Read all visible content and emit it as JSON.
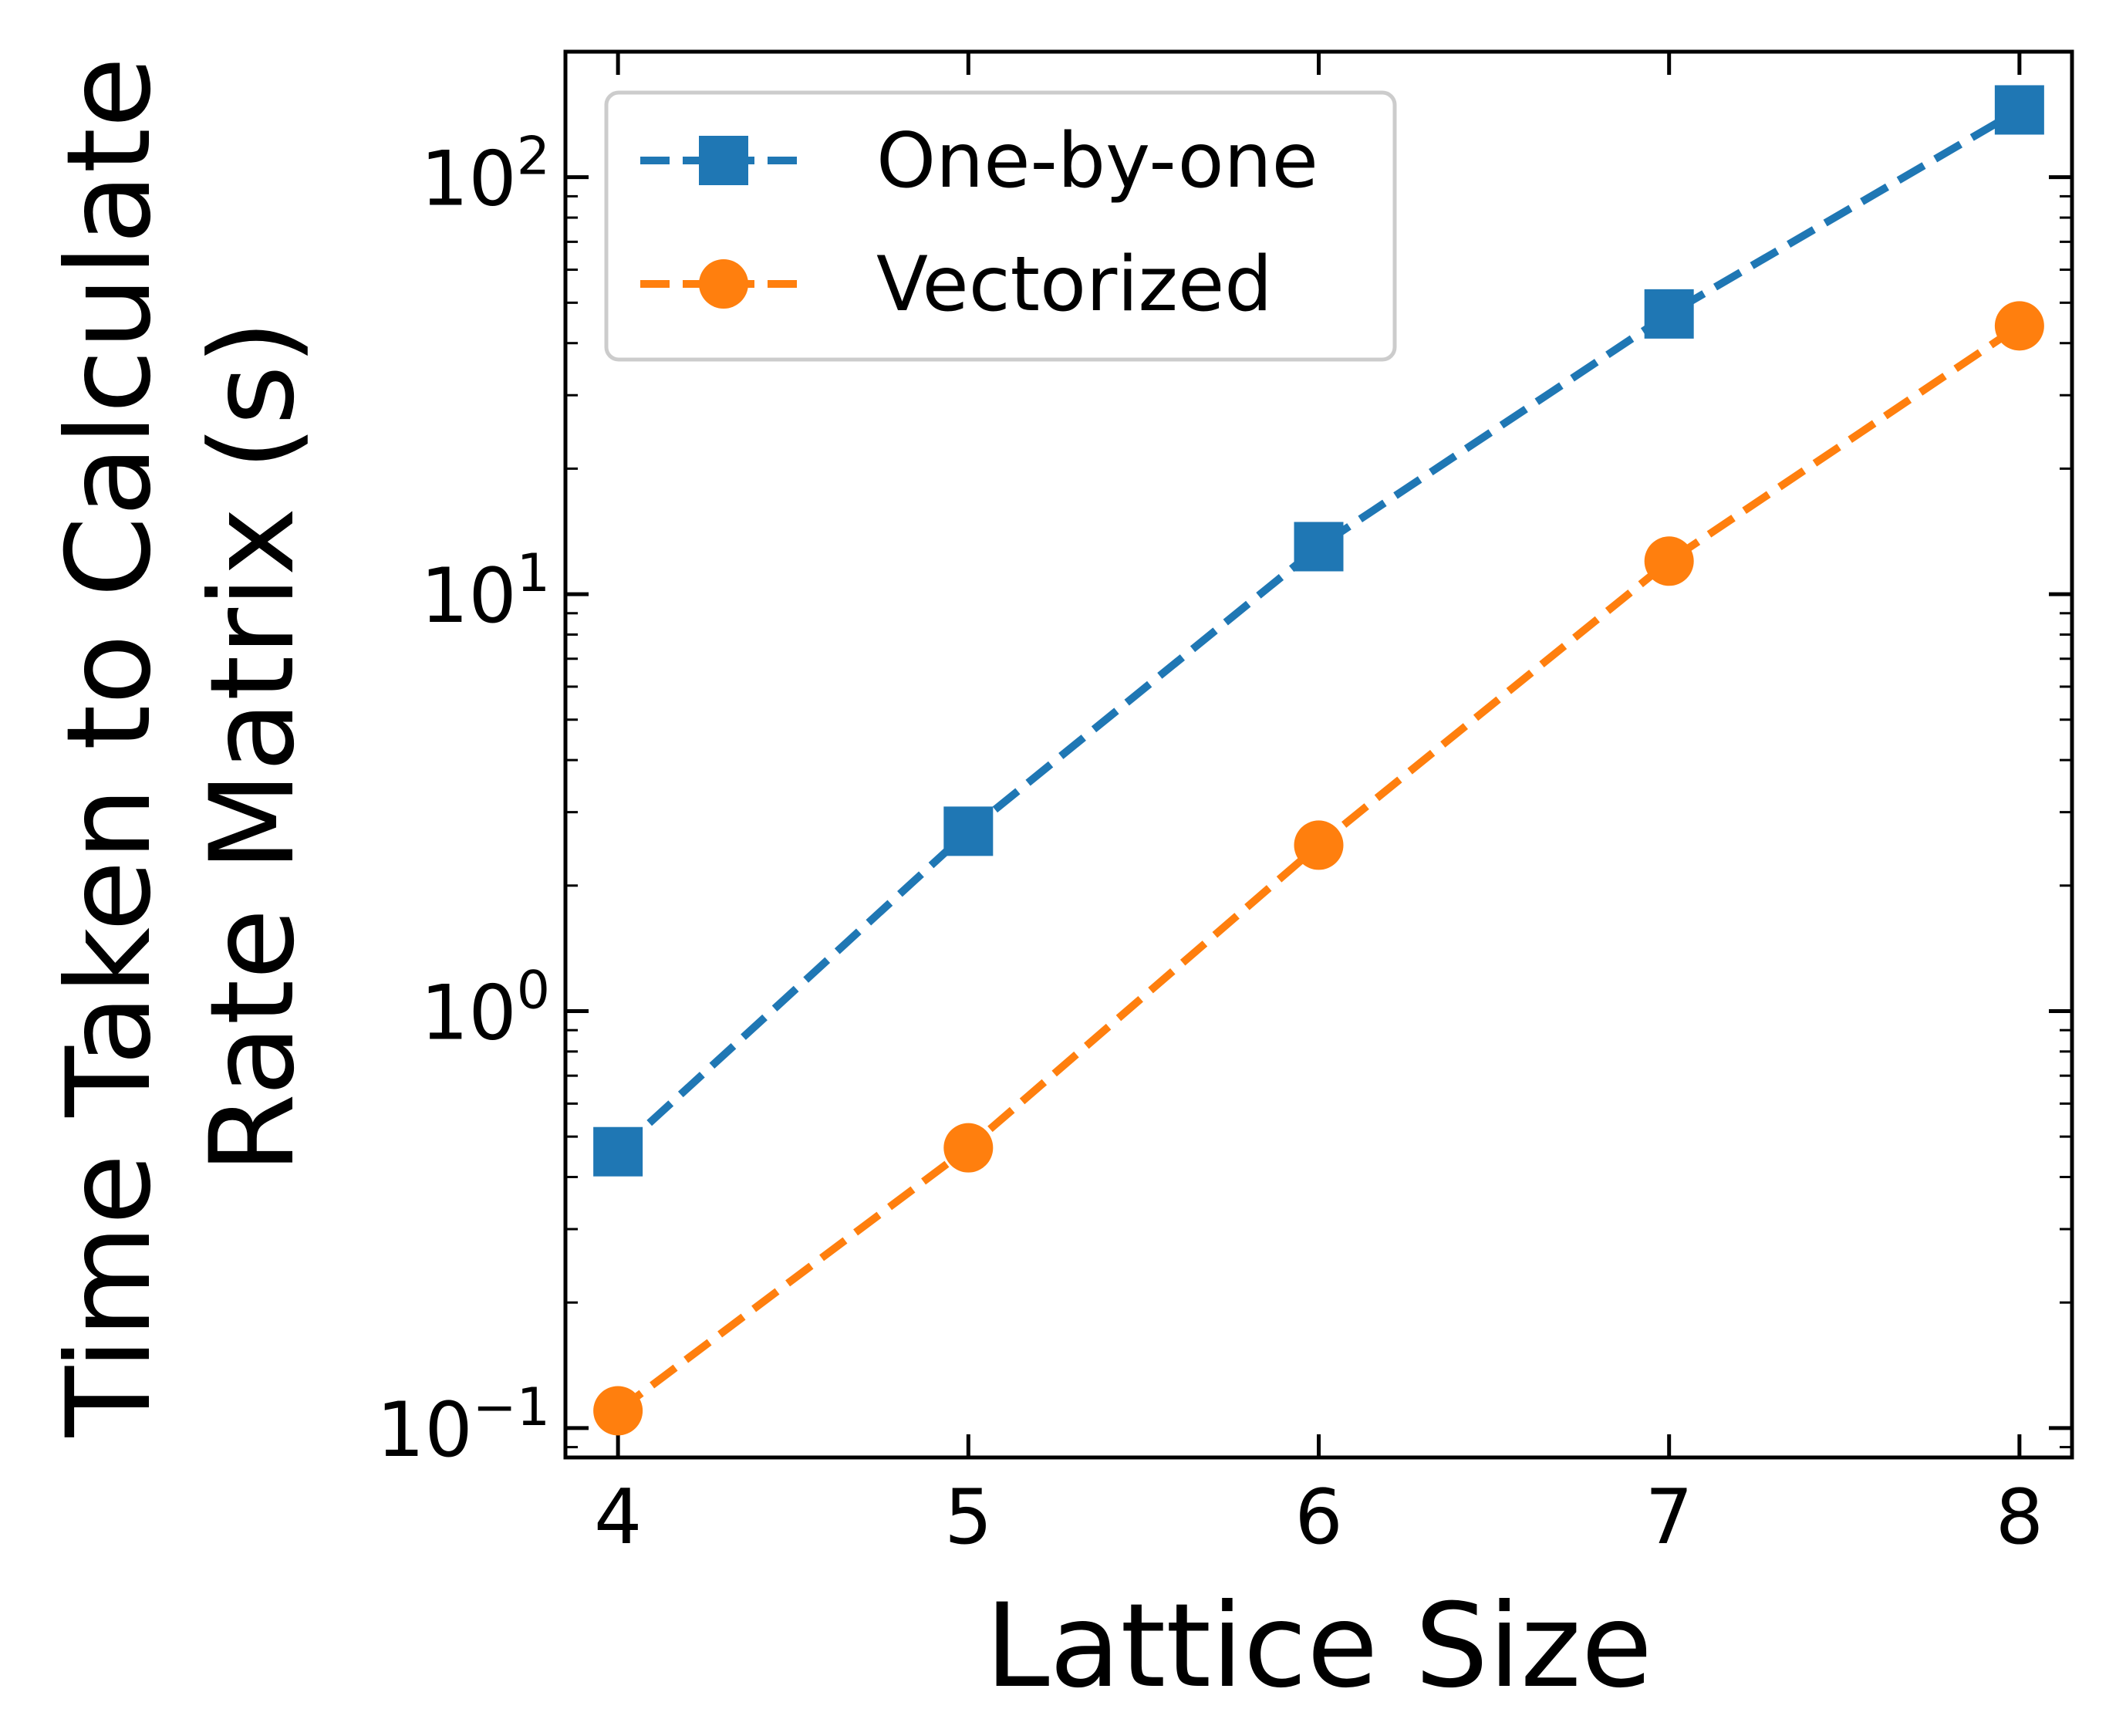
{
  "chart_data": {
    "type": "line",
    "title": "",
    "xlabel": "Lattice Size",
    "ylabel_lines": [
      "Time Taken to Calculate",
      "Rate Matrix (s)"
    ],
    "x": [
      4,
      5,
      6,
      7,
      8
    ],
    "xticks": [
      "4",
      "5",
      "6",
      "7",
      "8"
    ],
    "xlim": [
      3.85,
      8.15
    ],
    "yscale": "log",
    "ylim": [
      0.085,
      200
    ],
    "yticks": [
      {
        "value": 0.1,
        "base": "10",
        "exp": "−1"
      },
      {
        "value": 1,
        "base": "10",
        "exp": "0"
      },
      {
        "value": 10,
        "base": "10",
        "exp": "1"
      },
      {
        "value": 100,
        "base": "10",
        "exp": "2"
      }
    ],
    "grid": false,
    "legend_position": "top-left",
    "series": [
      {
        "name": "One-by-one",
        "color": "#1f77b4",
        "marker": "square",
        "linestyle": "dashed",
        "values": [
          0.46,
          2.7,
          13,
          47,
          145
        ]
      },
      {
        "name": "Vectorized",
        "color": "#ff7f0e",
        "marker": "circle",
        "linestyle": "dashed",
        "values": [
          0.11,
          0.47,
          2.5,
          12,
          44
        ]
      }
    ]
  }
}
